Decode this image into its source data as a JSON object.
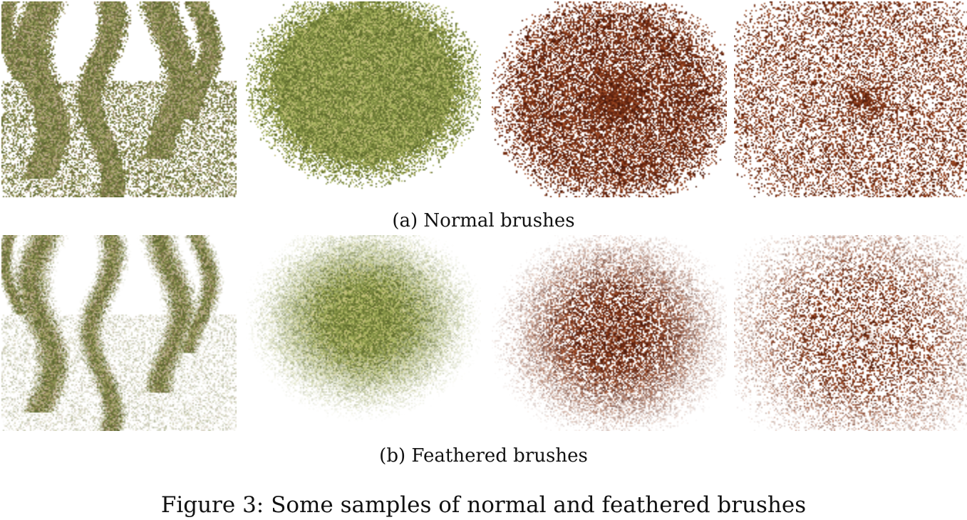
{
  "subfigure_a": {
    "caption": "(a) Normal brushes",
    "samples": [
      {
        "name": "brush-sample-1",
        "palette": [
          "#6f7a3f",
          "#8a9150",
          "#a7a36a",
          "#5d6630",
          "#b9a98c",
          "#7d7348"
        ]
      },
      {
        "name": "brush-sample-2",
        "palette": [
          "#8d9a4c",
          "#a9b45f",
          "#6f7e36",
          "#c0bd78",
          "#7c8a40",
          "#5e6b2d"
        ]
      },
      {
        "name": "brush-sample-3",
        "palette": [
          "#6e2a12",
          "#8a3a1a",
          "#5a2110",
          "#a1502a",
          "#7a3216",
          "#4e1a0b"
        ]
      },
      {
        "name": "brush-sample-4",
        "palette": [
          "#6b2a12",
          "#8a3a1a",
          "#57200d",
          "#9c4a25"
        ]
      }
    ]
  },
  "subfigure_b": {
    "caption": "(b) Feathered brushes",
    "samples": [
      {
        "name": "feathered-sample-1",
        "palette": [
          "#6f7a3f",
          "#8a9150",
          "#a7a36a",
          "#5d6630",
          "#b9a98c",
          "#7d7348"
        ]
      },
      {
        "name": "feathered-sample-2",
        "palette": [
          "#8d9a4c",
          "#a9b45f",
          "#6f7e36",
          "#c0bd78",
          "#7c8a40",
          "#5e6b2d"
        ]
      },
      {
        "name": "feathered-sample-3",
        "palette": [
          "#6e2a12",
          "#8a3a1a",
          "#5a2110",
          "#a1502a",
          "#7a3216",
          "#4e1a0b"
        ]
      },
      {
        "name": "feathered-sample-4",
        "palette": [
          "#6b2a12",
          "#8a3a1a",
          "#57200d",
          "#9c4a25"
        ]
      }
    ]
  },
  "figure_caption": "Figure 3: Some samples of normal and feathered brushes"
}
